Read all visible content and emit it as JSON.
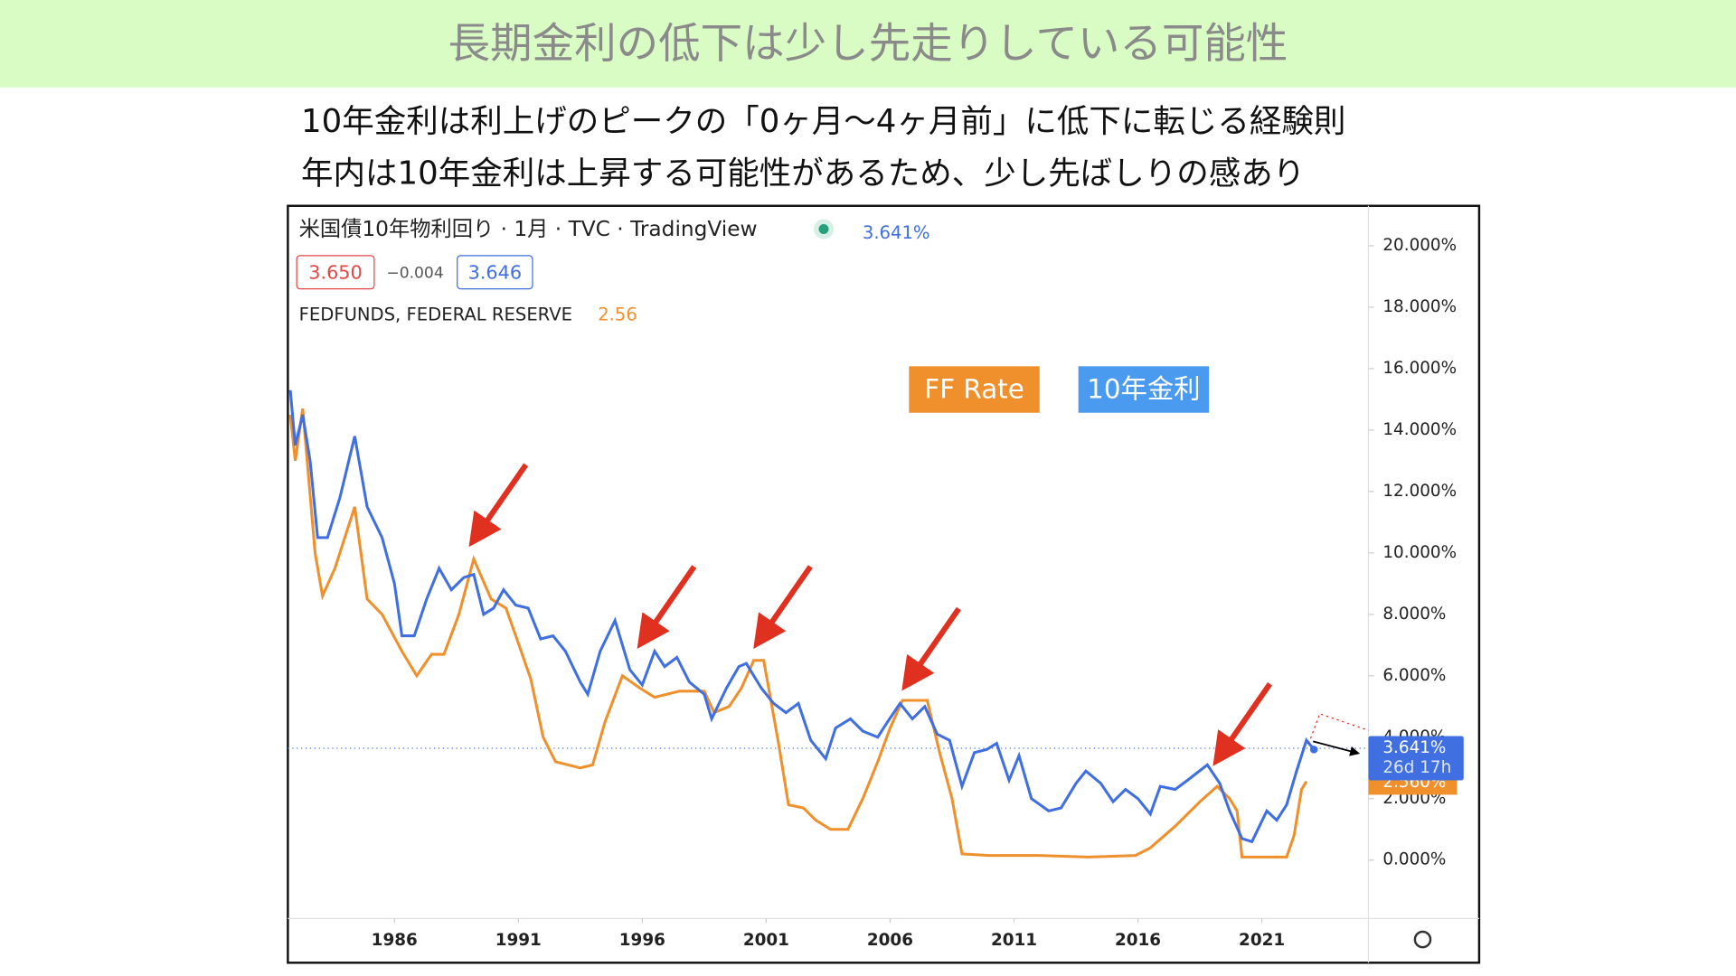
{
  "slide": {
    "title": "長期金利の低下は少し先走りしている可能性",
    "lines": [
      "10年金利は利上げのピークの「0ヶ月〜4ヶ月前」に低下に転じる経験則",
      "年内は10年金利は上昇する可能性があるため、少し先ばしりの感あり"
    ]
  },
  "chart_data": {
    "type": "line",
    "header": {
      "symbol": "米国債10年物利回り · 1月 · TVC · TradingView",
      "last": "3.641%",
      "bid": "3.650",
      "spread": "−0.004",
      "ask": "3.646",
      "second": "FEDFUNDS, FEDERAL RESERVE",
      "second_value": "2.56"
    },
    "price_line": {
      "value": 3.641,
      "label": "3.641%",
      "countdown": "26d 17h",
      "second_label": "2.560%"
    },
    "xlim": [
      1981.7,
      2025.3
    ],
    "xticks": [
      1986,
      1991,
      1996,
      2001,
      2006,
      2011,
      2016,
      2021
    ],
    "ylim": [
      -1.9,
      21.3
    ],
    "yticks": [
      {
        "value": 0,
        "label": "0.000%"
      },
      {
        "value": 2,
        "label": "2.000%"
      },
      {
        "value": 4,
        "label": "4.000%"
      },
      {
        "value": 6,
        "label": "6.000%"
      },
      {
        "value": 8,
        "label": "8.000%"
      },
      {
        "value": 10,
        "label": "10.000%"
      },
      {
        "value": 12,
        "label": "12.000%"
      },
      {
        "value": 14,
        "label": "14.000%"
      },
      {
        "value": 16,
        "label": "16.000%"
      },
      {
        "value": 18,
        "label": "18.000%"
      },
      {
        "value": 20,
        "label": "20.000%"
      }
    ],
    "series": [
      {
        "name": "10年金利",
        "color": "#3f6fe0",
        "legend_color": "#4a9af0",
        "x": [
          1981.8,
          1982.0,
          1982.3,
          1982.6,
          1982.9,
          1983.3,
          1983.8,
          1984.4,
          1984.9,
          1985.5,
          1986.0,
          1986.3,
          1986.8,
          1987.3,
          1987.8,
          1988.3,
          1988.8,
          1989.2,
          1989.6,
          1990.0,
          1990.4,
          1990.9,
          1991.4,
          1991.9,
          1992.4,
          1992.9,
          1993.5,
          1993.8,
          1994.3,
          1994.9,
          1995.5,
          1996.0,
          1996.5,
          1996.9,
          1997.4,
          1997.9,
          1998.5,
          1998.8,
          1999.4,
          1999.9,
          2000.2,
          2000.8,
          2001.3,
          2001.8,
          2002.3,
          2002.8,
          2003.4,
          2003.8,
          2004.4,
          2004.9,
          2005.5,
          2005.9,
          2006.4,
          2006.9,
          2007.4,
          2007.9,
          2008.4,
          2008.9,
          2009.4,
          2009.9,
          2010.3,
          2010.8,
          2011.2,
          2011.7,
          2012.4,
          2012.9,
          2013.5,
          2013.9,
          2014.5,
          2015.0,
          2015.5,
          2016.0,
          2016.5,
          2016.9,
          2017.5,
          2018.0,
          2018.8,
          2019.3,
          2019.7,
          2020.2,
          2020.6,
          2021.2,
          2021.6,
          2022.0,
          2022.4,
          2022.8,
          2023.1
        ],
        "values": [
          15.3,
          13.5,
          14.5,
          13.0,
          10.5,
          10.5,
          11.8,
          13.8,
          11.5,
          10.5,
          9.0,
          7.3,
          7.3,
          8.5,
          9.5,
          8.8,
          9.2,
          9.3,
          8.0,
          8.2,
          8.8,
          8.3,
          8.2,
          7.2,
          7.3,
          6.8,
          5.8,
          5.4,
          6.8,
          7.8,
          6.2,
          5.7,
          6.8,
          6.3,
          6.6,
          5.8,
          5.4,
          4.6,
          5.6,
          6.3,
          6.4,
          5.6,
          5.1,
          4.8,
          5.1,
          3.9,
          3.3,
          4.3,
          4.6,
          4.2,
          4.0,
          4.5,
          5.1,
          4.6,
          5.0,
          4.1,
          3.9,
          2.4,
          3.5,
          3.6,
          3.8,
          2.6,
          3.4,
          2.0,
          1.6,
          1.7,
          2.5,
          2.9,
          2.5,
          1.9,
          2.3,
          2.0,
          1.5,
          2.4,
          2.3,
          2.6,
          3.1,
          2.5,
          1.6,
          0.7,
          0.6,
          1.6,
          1.3,
          1.8,
          2.9,
          3.9,
          3.6
        ]
      },
      {
        "name": "FF Rate",
        "color": "#f0902c",
        "legend_color": "#f0902c",
        "x": [
          1981.8,
          1982.0,
          1982.3,
          1982.8,
          1983.1,
          1983.6,
          1984.4,
          1984.9,
          1985.5,
          1986.3,
          1986.9,
          1987.5,
          1988.0,
          1988.6,
          1989.2,
          1989.9,
          1990.5,
          1990.9,
          1991.5,
          1992.0,
          1992.5,
          1993.5,
          1994.0,
          1994.5,
          1995.2,
          1995.9,
          1996.5,
          1997.5,
          1998.5,
          1998.9,
          1999.5,
          2000.0,
          2000.5,
          2000.9,
          2001.5,
          2001.9,
          2002.5,
          2003.0,
          2003.6,
          2004.3,
          2004.9,
          2005.5,
          2006.0,
          2006.5,
          2007.5,
          2008.0,
          2008.5,
          2008.9,
          2010.0,
          2012.0,
          2014.0,
          2015.9,
          2016.5,
          2017.5,
          2018.5,
          2019.2,
          2019.7,
          2020.0,
          2020.2,
          2021.0,
          2022.0,
          2022.3,
          2022.6,
          2022.8
        ],
        "values": [
          14.5,
          13.0,
          14.7,
          10.0,
          8.6,
          9.5,
          11.5,
          8.5,
          8.0,
          6.8,
          6.0,
          6.7,
          6.7,
          8.0,
          9.8,
          8.5,
          8.2,
          7.3,
          5.9,
          4.0,
          3.2,
          3.0,
          3.1,
          4.5,
          6.0,
          5.6,
          5.3,
          5.5,
          5.5,
          4.8,
          5.0,
          5.6,
          6.5,
          6.5,
          3.8,
          1.8,
          1.7,
          1.3,
          1.0,
          1.0,
          2.0,
          3.2,
          4.3,
          5.2,
          5.2,
          3.5,
          2.0,
          0.2,
          0.15,
          0.15,
          0.1,
          0.15,
          0.4,
          1.1,
          1.9,
          2.4,
          2.0,
          1.6,
          0.1,
          0.1,
          0.1,
          0.8,
          2.3,
          2.56
        ]
      }
    ]
  }
}
